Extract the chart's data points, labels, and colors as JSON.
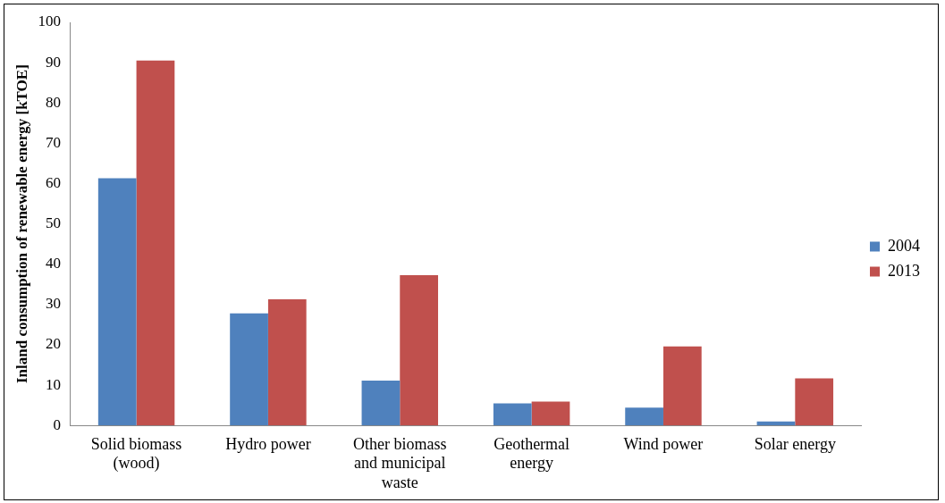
{
  "chart_data": {
    "type": "bar",
    "ylabel": "Inland consumption of renewable energy [kTOE]",
    "categories": [
      "Solid biomass (wood)",
      "Hydro power",
      "Other biomass and municipal waste",
      "Geothermal energy",
      "Wind power",
      "Solar energy"
    ],
    "series": [
      {
        "name": "2004",
        "color": "#4f81bd",
        "values": [
          61.3,
          27.8,
          11.1,
          5.5,
          4.4,
          1.0
        ]
      },
      {
        "name": "2013",
        "color": "#c0504d",
        "values": [
          90.5,
          31.3,
          37.3,
          5.9,
          19.6,
          11.7
        ]
      }
    ],
    "ylim": [
      0,
      100
    ],
    "yticks": [
      0,
      10,
      20,
      30,
      40,
      50,
      60,
      70,
      80,
      90,
      100
    ],
    "grid": false,
    "legend": "right"
  }
}
